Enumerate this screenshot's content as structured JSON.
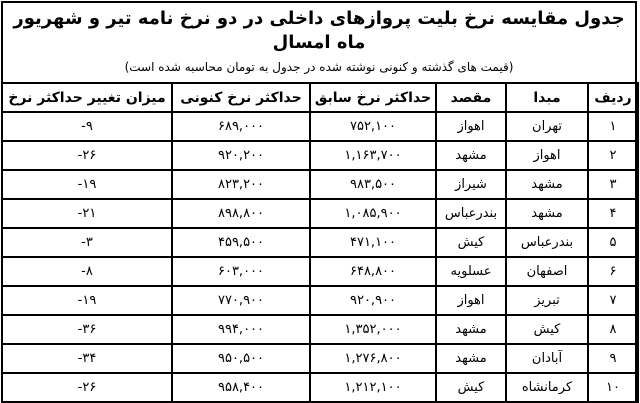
{
  "title": "جدول مقایسه نرخ بلیت پروازهای داخلی در دو نرخ نامه تیر و شهریور ماه امسال",
  "subtitle": "(قیمت های گذشته و کنونی نوشته شده در جدول به تومان محاسبه شده است)",
  "headers": [
    "ردیف",
    "مبدا",
    "مقصد",
    "حداکثر نرخ سابق",
    "حداکثر نرخ کنونی",
    "میزان تغییر حداکثر نرخ"
  ],
  "rows": [
    [
      "۱",
      "تهران",
      "اهواز",
      "۷۵۲,۱۰۰",
      "۶۸۹,۰۰۰",
      "-۹"
    ],
    [
      "۲",
      "اهواز",
      "مشهد",
      "۱,۱۶۳,۷۰۰",
      "۹۲۰,۲۰۰",
      "-۲۶"
    ],
    [
      "۳",
      "مشهد",
      "شیراز",
      "۹۸۳,۵۰۰",
      "۸۲۳,۲۰۰",
      "-۱۹"
    ],
    [
      "۴",
      "مشهد",
      "بندرعباس",
      "۱,۰۸۵,۹۰۰",
      "۸۹۸,۸۰۰",
      "-۲۱"
    ],
    [
      "۵",
      "بندرعباس",
      "کیش",
      "۴۷۱,۱۰۰",
      "۴۵۹,۵۰۰",
      "-۳"
    ],
    [
      "۶",
      "اصفهان",
      "عسلویه",
      "۶۴۸,۸۰۰",
      "۶۰۳,۰۰۰",
      "-۸"
    ],
    [
      "۷",
      "تبریز",
      "اهواز",
      "۹۲۰,۹۰۰",
      "۷۷۰,۹۰۰",
      "-۱۹"
    ],
    [
      "۸",
      "کیش",
      "مشهد",
      "۱,۳۵۲,۰۰۰",
      "۹۹۴,۰۰۰",
      "-۳۶"
    ],
    [
      "۹",
      "آبادان",
      "مشهد",
      "۱,۲۷۶,۸۰۰",
      "۹۵۰,۵۰۰",
      "-۳۴"
    ],
    [
      "۱۰",
      "کرمانشاه",
      "کیش",
      "۱,۲۱۲,۱۰۰",
      "۹۵۸,۴۰۰",
      "-۲۶"
    ]
  ]
}
